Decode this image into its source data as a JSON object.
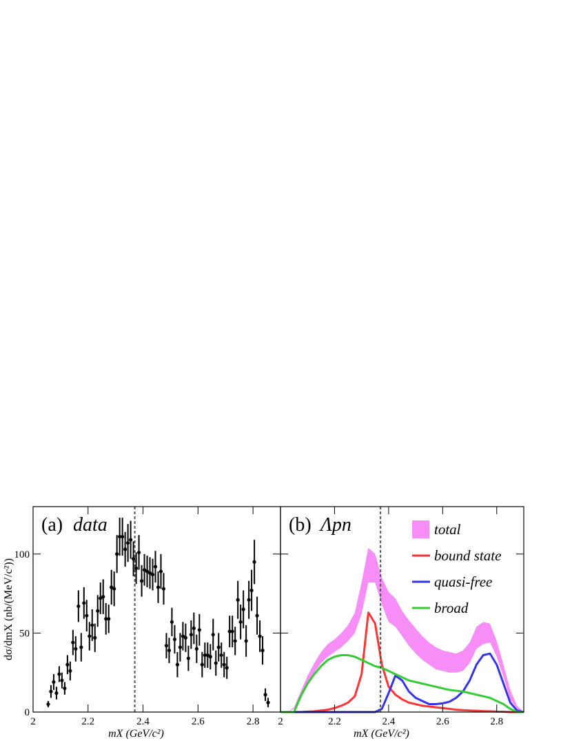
{
  "chart_data": [
    {
      "type": "errorbar",
      "panel_label": "(a)",
      "title": "data",
      "xlabel": "mX (GeV/c²)",
      "ylabel": "dσ/dmX (nb/(MeV/c²))",
      "xlim": [
        2,
        2.9
      ],
      "ylim": [
        0,
        130
      ],
      "xticks": [
        2,
        2.2,
        2.4,
        2.6,
        2.8
      ],
      "yticks": [
        0,
        50,
        100
      ],
      "ytick_labels": true,
      "vline": 2.37,
      "color": "#000000",
      "x": [
        2.055,
        2.065,
        2.075,
        2.085,
        2.095,
        2.105,
        2.115,
        2.125,
        2.135,
        2.145,
        2.155,
        2.165,
        2.175,
        2.185,
        2.195,
        2.205,
        2.215,
        2.225,
        2.235,
        2.245,
        2.255,
        2.265,
        2.275,
        2.285,
        2.295,
        2.305,
        2.315,
        2.325,
        2.335,
        2.345,
        2.355,
        2.365,
        2.375,
        2.385,
        2.395,
        2.405,
        2.415,
        2.425,
        2.435,
        2.445,
        2.455,
        2.465,
        2.475,
        2.485,
        2.495,
        2.505,
        2.515,
        2.525,
        2.535,
        2.545,
        2.555,
        2.565,
        2.575,
        2.585,
        2.595,
        2.605,
        2.615,
        2.625,
        2.635,
        2.645,
        2.655,
        2.665,
        2.675,
        2.685,
        2.695,
        2.705,
        2.715,
        2.725,
        2.735,
        2.745,
        2.755,
        2.765,
        2.775,
        2.785,
        2.795,
        2.805,
        2.815,
        2.825,
        2.835,
        2.845,
        2.855
      ],
      "values": [
        5,
        13,
        19,
        12,
        24,
        20,
        15,
        30,
        26,
        44,
        40,
        67,
        41,
        69,
        61,
        48,
        55,
        47,
        64,
        72,
        73,
        59,
        59,
        79,
        78,
        100,
        111,
        111,
        103,
        107,
        109,
        97,
        91,
        101,
        83,
        90,
        89,
        88,
        87,
        92,
        79,
        89,
        78,
        42,
        39,
        57,
        46,
        30,
        41,
        48,
        47,
        34,
        49,
        53,
        40,
        52,
        30,
        36,
        36,
        35,
        49,
        31,
        41,
        36,
        30,
        28,
        51,
        51,
        45,
        71,
        57,
        65,
        45,
        71,
        77,
        95,
        61,
        48,
        39,
        11,
        6
      ],
      "errors": [
        2,
        4,
        5,
        4,
        5,
        5,
        4,
        6,
        6,
        8,
        8,
        10,
        9,
        10,
        10,
        9,
        10,
        9,
        10,
        10,
        11,
        10,
        9,
        11,
        11,
        12,
        12,
        12,
        11,
        12,
        12,
        11,
        10,
        11,
        10,
        10,
        10,
        10,
        10,
        10,
        10,
        11,
        10,
        8,
        8,
        9,
        9,
        8,
        9,
        9,
        9,
        8,
        9,
        10,
        9,
        10,
        8,
        8,
        8,
        8,
        10,
        8,
        9,
        8,
        8,
        7,
        10,
        10,
        9,
        12,
        11,
        12,
        10,
        12,
        13,
        14,
        12,
        10,
        9,
        4,
        3
      ]
    },
    {
      "type": "line",
      "panel_label": "(b)",
      "title": "Λpn",
      "xlabel": "mX (GeV/c²)",
      "xlim": [
        2,
        2.9
      ],
      "ylim": [
        0,
        130
      ],
      "xticks": [
        2,
        2.2,
        2.4,
        2.6,
        2.8
      ],
      "yticks": [
        0,
        50,
        100
      ],
      "ytick_labels": false,
      "vline": 2.37,
      "x": [
        2.0,
        2.025,
        2.05,
        2.075,
        2.1,
        2.125,
        2.15,
        2.175,
        2.2,
        2.225,
        2.25,
        2.275,
        2.3,
        2.325,
        2.35,
        2.375,
        2.4,
        2.425,
        2.45,
        2.475,
        2.5,
        2.525,
        2.55,
        2.575,
        2.6,
        2.625,
        2.65,
        2.675,
        2.7,
        2.725,
        2.75,
        2.775,
        2.8,
        2.825,
        2.85,
        2.875,
        2.9
      ],
      "series": [
        {
          "name": "total",
          "kind": "band",
          "color": "#f78ef7",
          "lower": [
            0,
            0,
            2,
            10,
            19,
            25,
            31,
            35,
            38,
            41,
            45,
            50,
            62,
            82,
            82,
            68,
            57,
            54,
            48,
            42,
            37,
            33,
            30,
            27,
            26,
            25,
            25,
            26,
            31,
            40,
            43,
            44,
            35,
            22,
            8,
            2,
            0
          ],
          "upper": [
            0,
            0,
            3,
            13,
            23,
            31,
            38,
            43,
            46,
            50,
            55,
            63,
            82,
            104,
            100,
            85,
            76,
            72,
            64,
            58,
            53,
            48,
            44,
            41,
            39,
            38,
            37,
            39,
            44,
            54,
            57,
            56,
            45,
            30,
            14,
            4,
            0
          ]
        },
        {
          "name": "bound state",
          "kind": "line",
          "color": "#ff3333",
          "values": [
            0,
            0,
            0,
            0,
            0.3,
            0.5,
            1,
            1.5,
            2.5,
            4,
            6,
            10,
            24,
            63,
            56,
            30,
            16,
            11,
            8,
            6,
            5,
            4,
            3.5,
            3,
            2.5,
            2,
            1.5,
            1.2,
            1,
            0.8,
            0.6,
            0.5,
            0.3,
            0.2,
            0,
            0,
            0
          ]
        },
        {
          "name": "quasi-free",
          "kind": "line",
          "color": "#3333ee",
          "values": [
            0,
            0,
            0,
            0,
            0,
            0,
            0,
            0,
            0,
            0,
            0,
            0,
            0,
            0,
            0,
            2,
            12,
            23,
            20,
            13,
            9,
            7,
            5,
            5,
            5.5,
            6.5,
            9,
            13,
            20,
            30,
            36,
            37,
            30,
            18,
            6,
            1,
            0
          ]
        },
        {
          "name": "broad",
          "kind": "line",
          "color": "#33cc33",
          "values": [
            0,
            0,
            0,
            10,
            18,
            24,
            29,
            33,
            35,
            36,
            36,
            35,
            33,
            31,
            29,
            28,
            26,
            24,
            22,
            20,
            19,
            18,
            17,
            16,
            15,
            14,
            13.5,
            13,
            12,
            11,
            10,
            9,
            7,
            5,
            2,
            0,
            0
          ]
        }
      ]
    }
  ]
}
